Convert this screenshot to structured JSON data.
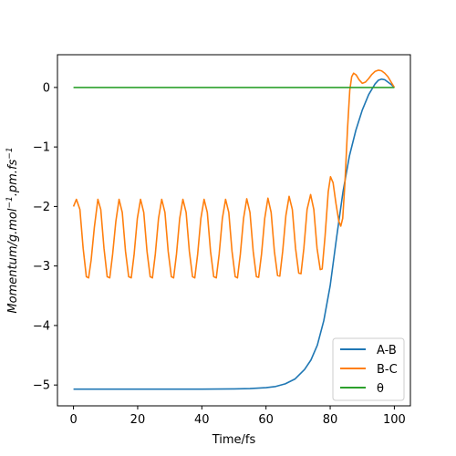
{
  "chart_data": {
    "type": "line",
    "xlabel": "Time/fs",
    "ylabel": "Momentum/g.mol⁻¹.pm.fs⁻¹",
    "ylabel_parts": {
      "base1": "Momentum/g.",
      "mol": "mol",
      "sup1": "−1",
      "mid": ".",
      "pm": "pm",
      "mid2": ".",
      "fs": "fs",
      "sup2": "−1"
    },
    "xlim": [
      -5,
      105
    ],
    "ylim": [
      -5.35,
      0.55
    ],
    "x_ticks": [
      0,
      20,
      40,
      60,
      80,
      100
    ],
    "x_tick_labels": [
      "0",
      "20",
      "40",
      "60",
      "80",
      "100"
    ],
    "y_ticks": [
      -5,
      -4,
      -3,
      -2,
      -1,
      0
    ],
    "y_tick_labels": [
      "−5",
      "−4",
      "−3",
      "−2",
      "−1",
      "0"
    ],
    "grid": false,
    "legend_position": "lower-right",
    "series": [
      {
        "name": "A-B",
        "color": "#1f77b4",
        "points": [
          [
            0,
            -5.07
          ],
          [
            10,
            -5.07
          ],
          [
            20,
            -5.07
          ],
          [
            30,
            -5.07
          ],
          [
            40,
            -5.07
          ],
          [
            50,
            -5.065
          ],
          [
            55,
            -5.06
          ],
          [
            60,
            -5.045
          ],
          [
            63,
            -5.025
          ],
          [
            66,
            -4.98
          ],
          [
            69,
            -4.9
          ],
          [
            72,
            -4.74
          ],
          [
            74,
            -4.58
          ],
          [
            76,
            -4.33
          ],
          [
            78,
            -3.92
          ],
          [
            80,
            -3.33
          ],
          [
            82,
            -2.52
          ],
          [
            84,
            -1.75
          ],
          [
            86,
            -1.15
          ],
          [
            88,
            -0.72
          ],
          [
            90,
            -0.38
          ],
          [
            92,
            -0.12
          ],
          [
            94,
            0.06
          ],
          [
            95,
            0.12
          ],
          [
            96,
            0.14
          ],
          [
            97,
            0.13
          ],
          [
            98,
            0.09
          ],
          [
            99,
            0.05
          ],
          [
            100,
            0.0
          ]
        ]
      },
      {
        "name": "B-C",
        "color": "#ff7f0e",
        "points": [
          [
            0,
            -2.0
          ],
          [
            0.9,
            -1.88
          ],
          [
            2,
            -2.05
          ],
          [
            3,
            -2.7
          ],
          [
            4,
            -3.18
          ],
          [
            4.7,
            -3.2
          ],
          [
            5.5,
            -2.9
          ],
          [
            6.5,
            -2.35
          ],
          [
            7.6,
            -1.88
          ],
          [
            8.5,
            -2.05
          ],
          [
            9.5,
            -2.7
          ],
          [
            10.5,
            -3.18
          ],
          [
            11.3,
            -3.2
          ],
          [
            12.2,
            -2.8
          ],
          [
            13.2,
            -2.25
          ],
          [
            14.2,
            -1.88
          ],
          [
            15.2,
            -2.1
          ],
          [
            16.2,
            -2.75
          ],
          [
            17.2,
            -3.18
          ],
          [
            18,
            -3.2
          ],
          [
            18.9,
            -2.8
          ],
          [
            19.9,
            -2.2
          ],
          [
            20.9,
            -1.88
          ],
          [
            21.9,
            -2.1
          ],
          [
            22.9,
            -2.75
          ],
          [
            23.9,
            -3.18
          ],
          [
            24.6,
            -3.2
          ],
          [
            25.5,
            -2.8
          ],
          [
            26.5,
            -2.2
          ],
          [
            27.5,
            -1.88
          ],
          [
            28.5,
            -2.1
          ],
          [
            29.5,
            -2.75
          ],
          [
            30.5,
            -3.18
          ],
          [
            31.2,
            -3.2
          ],
          [
            32.1,
            -2.8
          ],
          [
            33.1,
            -2.2
          ],
          [
            34.1,
            -1.88
          ],
          [
            35.1,
            -2.1
          ],
          [
            36.1,
            -2.75
          ],
          [
            37.1,
            -3.18
          ],
          [
            37.8,
            -3.2
          ],
          [
            38.7,
            -2.8
          ],
          [
            39.7,
            -2.2
          ],
          [
            40.7,
            -1.88
          ],
          [
            41.7,
            -2.1
          ],
          [
            42.7,
            -2.75
          ],
          [
            43.7,
            -3.18
          ],
          [
            44.5,
            -3.2
          ],
          [
            45.4,
            -2.8
          ],
          [
            46.4,
            -2.2
          ],
          [
            47.4,
            -1.88
          ],
          [
            48.4,
            -2.1
          ],
          [
            49.4,
            -2.75
          ],
          [
            50.4,
            -3.18
          ],
          [
            51.1,
            -3.2
          ],
          [
            52,
            -2.8
          ],
          [
            53,
            -2.2
          ],
          [
            54,
            -1.87
          ],
          [
            55,
            -2.1
          ],
          [
            56,
            -2.75
          ],
          [
            57,
            -3.18
          ],
          [
            57.7,
            -3.19
          ],
          [
            58.6,
            -2.8
          ],
          [
            59.6,
            -2.2
          ],
          [
            60.6,
            -1.86
          ],
          [
            61.6,
            -2.1
          ],
          [
            62.6,
            -2.75
          ],
          [
            63.6,
            -3.16
          ],
          [
            64.3,
            -3.17
          ],
          [
            65.2,
            -2.75
          ],
          [
            66.2,
            -2.15
          ],
          [
            67.2,
            -1.83
          ],
          [
            68.2,
            -2.05
          ],
          [
            69.2,
            -2.7
          ],
          [
            70.2,
            -3.12
          ],
          [
            70.9,
            -3.13
          ],
          [
            71.8,
            -2.7
          ],
          [
            72.8,
            -2.05
          ],
          [
            73.9,
            -1.8
          ],
          [
            74.9,
            -2.05
          ],
          [
            75.9,
            -2.7
          ],
          [
            76.9,
            -3.06
          ],
          [
            77.5,
            -3.05
          ],
          [
            78.4,
            -2.5
          ],
          [
            79.4,
            -1.75
          ],
          [
            80.1,
            -1.5
          ],
          [
            80.9,
            -1.6
          ],
          [
            81.8,
            -1.95
          ],
          [
            82.7,
            -2.25
          ],
          [
            83.3,
            -2.33
          ],
          [
            83.9,
            -2.2
          ],
          [
            84.6,
            -1.6
          ],
          [
            85.4,
            -0.7
          ],
          [
            86.1,
            -0.05
          ],
          [
            86.7,
            0.18
          ],
          [
            87.3,
            0.24
          ],
          [
            88.1,
            0.21
          ],
          [
            89,
            0.13
          ],
          [
            90,
            0.07
          ],
          [
            91,
            0.09
          ],
          [
            92,
            0.15
          ],
          [
            93,
            0.22
          ],
          [
            94,
            0.27
          ],
          [
            95,
            0.29
          ],
          [
            96,
            0.28
          ],
          [
            97,
            0.24
          ],
          [
            98,
            0.18
          ],
          [
            99,
            0.09
          ],
          [
            100,
            0.0
          ]
        ]
      },
      {
        "name": "θ",
        "color": "#2ca02c",
        "points": [
          [
            0,
            0.0
          ],
          [
            100,
            0.0
          ]
        ]
      }
    ]
  }
}
